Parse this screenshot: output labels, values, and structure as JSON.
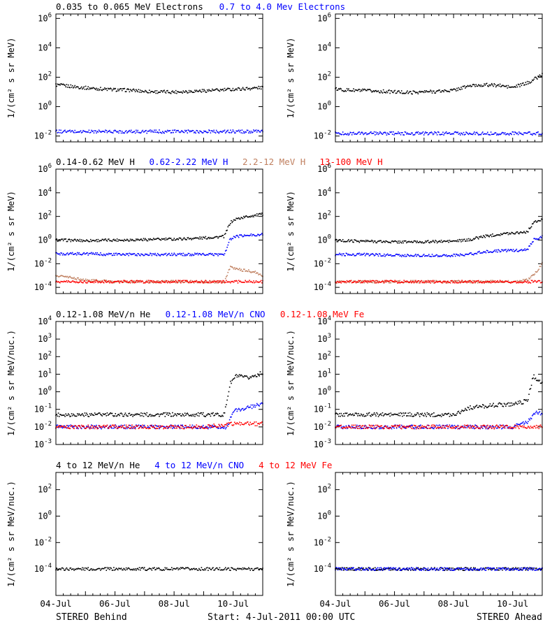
{
  "figure": {
    "footer_left": "STEREO Behind",
    "footer_center": "Start:  4-Jul-2011 00:00 UTC",
    "footer_right": "STEREO Ahead"
  },
  "colors": {
    "black": "#000000",
    "blue": "#0000ff",
    "tan": "#c08060",
    "red": "#ff0000"
  },
  "chart_data": [
    {
      "type": "scatter",
      "row": 1,
      "legend": [
        {
          "label": "0.035 to 0.065 MeV Electrons",
          "color": "#000000"
        },
        {
          "label": "0.7 to 4.0 Mev Electrons",
          "color": "#0000ff"
        }
      ],
      "ylabel": "1/(cm² s sr MeV)",
      "yscale": "log",
      "ylim": [
        0.004,
        2000000
      ],
      "yticks": [
        0.01,
        1,
        100,
        10000,
        1000000
      ],
      "yticklabels": [
        "10^-2",
        "10^0",
        "10^2",
        "10^4",
        "10^6"
      ],
      "xlim": [
        0,
        7
      ],
      "panels": [
        {
          "name": "STEREO Behind",
          "series": [
            {
              "name": "0.035 to 0.065 MeV Electrons",
              "color": "#000000",
              "x": [
                0,
                0.5,
                1,
                1.5,
                2,
                2.5,
                3,
                3.5,
                4,
                4.5,
                5,
                5.5,
                6,
                6.5,
                7
              ],
              "y": [
                30,
                24,
                19,
                16,
                14,
                13,
                11,
                10,
                10,
                11,
                12,
                13,
                15,
                17,
                20
              ]
            },
            {
              "name": "0.7 to 4.0 Mev Electrons",
              "color": "#0000ff",
              "x": [
                0,
                1,
                2,
                3,
                4,
                5,
                6,
                7
              ],
              "y": [
                0.02,
                0.02,
                0.02,
                0.02,
                0.02,
                0.02,
                0.02,
                0.02
              ]
            }
          ]
        },
        {
          "name": "STEREO Ahead",
          "series": [
            {
              "name": "0.035 to 0.065 MeV Electrons",
              "color": "#000000",
              "x": [
                0,
                0.5,
                1,
                1.5,
                2,
                2.5,
                3,
                3.5,
                4,
                4.5,
                5,
                5.5,
                6,
                6.5,
                7
              ],
              "y": [
                15,
                13,
                12,
                11,
                10,
                9,
                10,
                11,
                13,
                25,
                30,
                28,
                20,
                40,
                150
              ]
            },
            {
              "name": "0.7 to 4.0 Mev Electrons",
              "color": "#0000ff",
              "x": [
                0,
                1,
                2,
                3,
                4,
                5,
                6,
                7
              ],
              "y": [
                0.015,
                0.015,
                0.015,
                0.015,
                0.015,
                0.015,
                0.015,
                0.015
              ]
            }
          ]
        }
      ]
    },
    {
      "type": "scatter",
      "row": 2,
      "legend": [
        {
          "label": "0.14-0.62 MeV H",
          "color": "#000000"
        },
        {
          "label": "0.62-2.22 MeV H",
          "color": "#0000ff"
        },
        {
          "label": "2.2-12 MeV H",
          "color": "#c08060"
        },
        {
          "label": "13-100 MeV H",
          "color": "#ff0000"
        }
      ],
      "ylabel": "1/(cm² s sr MeV)",
      "yscale": "log",
      "ylim": [
        3e-05,
        1000000
      ],
      "yticks": [
        0.0001,
        0.01,
        1,
        100,
        10000,
        1000000
      ],
      "yticklabels": [
        "10^-4",
        "10^-2",
        "10^0",
        "10^2",
        "10^4",
        "10^6"
      ],
      "xlim": [
        0,
        7
      ],
      "panels": [
        {
          "name": "STEREO Behind",
          "series": [
            {
              "name": "0.14-0.62 MeV H",
              "color": "#000000",
              "x": [
                0,
                1,
                2,
                3,
                4,
                5,
                5.7,
                5.9,
                6.1,
                6.5,
                7
              ],
              "y": [
                1.0,
                0.9,
                1.0,
                1.1,
                1.2,
                1.5,
                2,
                30,
                60,
                100,
                150
              ]
            },
            {
              "name": "0.62-2.22 MeV H",
              "color": "#0000ff",
              "x": [
                0,
                1,
                2,
                3,
                4,
                5,
                5.7,
                5.9,
                6.1,
                6.5,
                7
              ],
              "y": [
                0.07,
                0.07,
                0.06,
                0.06,
                0.06,
                0.06,
                0.06,
                1.2,
                2,
                2.5,
                3
              ]
            },
            {
              "name": "2.2-12 MeV H",
              "color": "#c08060",
              "x": [
                0,
                0.3,
                0.6,
                1,
                2,
                3,
                4,
                5,
                5.7,
                5.9,
                6.3,
                6.7,
                7
              ],
              "y": [
                0.001,
                0.0008,
                0.0006,
                0.0004,
                0.0003,
                0.0003,
                0.0003,
                0.0003,
                0.0003,
                0.005,
                0.003,
                0.002,
                0.001
              ]
            },
            {
              "name": "13-100 MeV H",
              "color": "#ff0000",
              "x": [
                0,
                1,
                2,
                3,
                4,
                5,
                6,
                7
              ],
              "y": [
                0.0003,
                0.0003,
                0.0003,
                0.0003,
                0.0003,
                0.0003,
                0.0003,
                0.0003
              ]
            }
          ]
        },
        {
          "name": "STEREO Ahead",
          "series": [
            {
              "name": "0.14-0.62 MeV H",
              "color": "#000000",
              "x": [
                0,
                1,
                2,
                3,
                4,
                4.5,
                5,
                5.5,
                6,
                6.5,
                6.7,
                7
              ],
              "y": [
                0.9,
                0.8,
                0.7,
                0.7,
                0.8,
                1.0,
                2,
                3,
                4,
                5,
                30,
                50
              ]
            },
            {
              "name": "0.62-2.22 MeV H",
              "color": "#0000ff",
              "x": [
                0,
                1,
                2,
                3,
                4,
                4.5,
                5,
                5.5,
                6,
                6.5,
                6.7,
                7
              ],
              "y": [
                0.06,
                0.06,
                0.05,
                0.05,
                0.05,
                0.06,
                0.1,
                0.12,
                0.13,
                0.15,
                1,
                2
              ]
            },
            {
              "name": "2.2-12 MeV H",
              "color": "#c08060",
              "x": [
                0,
                1,
                2,
                3,
                4,
                5,
                6,
                6.5,
                6.8,
                7
              ],
              "y": [
                0.0003,
                0.0003,
                0.0003,
                0.0003,
                0.0003,
                0.0003,
                0.0003,
                0.0004,
                0.002,
                0.01
              ]
            },
            {
              "name": "13-100 MeV H",
              "color": "#ff0000",
              "x": [
                0,
                1,
                2,
                3,
                4,
                5,
                6,
                7
              ],
              "y": [
                0.0003,
                0.0003,
                0.0003,
                0.0003,
                0.0003,
                0.0003,
                0.0003,
                0.0003
              ]
            }
          ]
        }
      ]
    },
    {
      "type": "scatter",
      "row": 3,
      "legend": [
        {
          "label": "0.12-1.08 MeV/n He",
          "color": "#000000"
        },
        {
          "label": "0.12-1.08 MeV/n CNO",
          "color": "#0000ff"
        },
        {
          "label": "0.12-1.08 MeV Fe",
          "color": "#ff0000"
        }
      ],
      "ylabel": "1/(cm² s sr MeV/nuc.)",
      "yscale": "log",
      "ylim": [
        0.001,
        10000
      ],
      "yticks": [
        0.001,
        0.01,
        0.1,
        1,
        10,
        100,
        1000,
        10000
      ],
      "yticklabels": [
        "10^-3",
        "10^-2",
        "10^-1",
        "10^0",
        "10^1",
        "10^2",
        "10^3",
        "10^4"
      ],
      "xlim": [
        0,
        7
      ],
      "panels": [
        {
          "name": "STEREO Behind",
          "series": [
            {
              "name": "0.12-1.08 MeV/n He",
              "color": "#000000",
              "x": [
                0,
                1,
                2,
                3,
                4,
                5,
                5.7,
                5.9,
                6.1,
                6.5,
                7
              ],
              "y": [
                0.05,
                0.05,
                0.05,
                0.05,
                0.05,
                0.05,
                0.05,
                3,
                8,
                6,
                12
              ]
            },
            {
              "name": "0.12-1.08 MeV/n CNO",
              "color": "#0000ff",
              "x": [
                0,
                1,
                2,
                3,
                4,
                5,
                5.8,
                6.0,
                6.3,
                6.7,
                7
              ],
              "y": [
                0.01,
                0.01,
                0.01,
                0.01,
                0.01,
                0.01,
                0.01,
                0.08,
                0.1,
                0.15,
                0.2
              ]
            },
            {
              "name": "0.12-1.08 MeV Fe",
              "color": "#ff0000",
              "x": [
                0,
                1,
                2,
                3,
                4,
                5,
                6,
                7
              ],
              "y": [
                0.01,
                0.01,
                0.01,
                0.01,
                0.01,
                0.01,
                0.015,
                0.015
              ]
            }
          ]
        },
        {
          "name": "STEREO Ahead",
          "series": [
            {
              "name": "0.12-1.08 MeV/n He",
              "color": "#000000",
              "x": [
                0,
                1,
                2,
                3,
                4,
                4.5,
                5,
                5.5,
                6,
                6.5,
                6.7,
                7
              ],
              "y": [
                0.05,
                0.05,
                0.05,
                0.05,
                0.05,
                0.12,
                0.15,
                0.18,
                0.2,
                0.3,
                8,
                3
              ]
            },
            {
              "name": "0.12-1.08 MeV/n CNO",
              "color": "#0000ff",
              "x": [
                0,
                1,
                2,
                3,
                4,
                5,
                6,
                6.5,
                6.8,
                7
              ],
              "y": [
                0.01,
                0.01,
                0.01,
                0.01,
                0.01,
                0.01,
                0.01,
                0.02,
                0.08,
                0.05
              ]
            },
            {
              "name": "0.12-1.08 MeV Fe",
              "color": "#ff0000",
              "x": [
                0,
                1,
                2,
                3,
                4,
                5,
                6,
                7
              ],
              "y": [
                0.01,
                0.01,
                0.01,
                0.01,
                0.01,
                0.01,
                0.01,
                0.01
              ]
            }
          ]
        }
      ]
    },
    {
      "type": "scatter",
      "row": 4,
      "legend": [
        {
          "label": "4 to 12 MeV/n He",
          "color": "#000000"
        },
        {
          "label": "4 to 12 MeV/n CNO",
          "color": "#0000ff"
        },
        {
          "label": "4 to 12 MeV Fe",
          "color": "#ff0000"
        }
      ],
      "ylabel": "1/(cm² s sr MeV/nuc.)",
      "yscale": "log",
      "ylim": [
        1e-06,
        2000
      ],
      "yticks": [
        0.0001,
        0.01,
        1,
        100
      ],
      "yticklabels": [
        "10^-4",
        "10^-2",
        "10^0",
        "10^2"
      ],
      "xlim": [
        0,
        7
      ],
      "xticks": [
        0,
        2,
        4,
        6
      ],
      "xticklabels": [
        "04-Jul",
        "06-Jul",
        "08-Jul",
        "10-Jul"
      ],
      "panels": [
        {
          "name": "STEREO Behind",
          "series": [
            {
              "name": "4 to 12 MeV/n He",
              "color": "#000000",
              "x": [
                0,
                1,
                2,
                3,
                4,
                5,
                6,
                7
              ],
              "y": [
                0.0001,
                0.0001,
                0.0001,
                0.0001,
                0.0001,
                0.0001,
                0.0001,
                0.0001
              ]
            }
          ]
        },
        {
          "name": "STEREO Ahead",
          "series": [
            {
              "name": "4 to 12 MeV/n He",
              "color": "#000000",
              "x": [
                0,
                1,
                2,
                3,
                4,
                5,
                6,
                7
              ],
              "y": [
                0.0001,
                0.0001,
                0.0001,
                0.0001,
                0.0001,
                0.0001,
                0.0001,
                0.0001
              ]
            },
            {
              "name": "4 to 12 MeV/n CNO",
              "color": "#0000ff",
              "x": [
                0,
                1,
                2,
                3,
                4,
                5,
                6,
                7
              ],
              "y": [
                0.0001,
                0.0001,
                0.0001,
                0.0001,
                0.0001,
                0.0001,
                0.0001,
                0.0001
              ]
            }
          ]
        }
      ]
    }
  ]
}
